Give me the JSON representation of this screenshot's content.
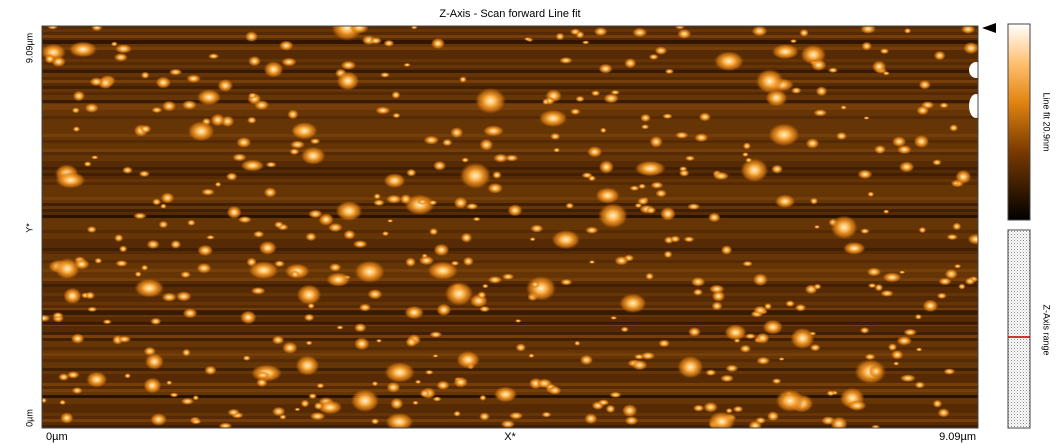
{
  "header": {
    "title": "Z-Axis - Scan forward   Line fit"
  },
  "image": {
    "y_axis": {
      "top": "9.09µm",
      "middle": "Y*",
      "bottom": "0µm"
    },
    "x_axis": {
      "left": "0µm",
      "middle": "X*",
      "right": "9.09µm"
    }
  },
  "colorbar": {
    "label": "Line fit 20.9nm"
  },
  "range_bar": {
    "label": "Z-Axis range"
  }
}
